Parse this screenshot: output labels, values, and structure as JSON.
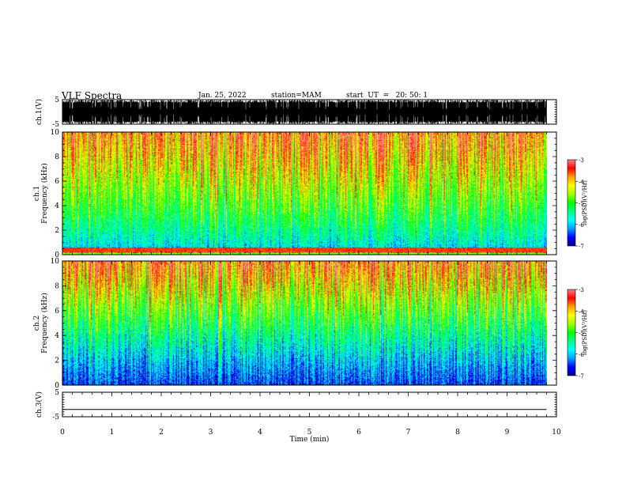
{
  "header": {
    "title": "VLF Spectra",
    "date": "Jan. 25, 2022",
    "station": "station=MAM",
    "start": "start  UT  =   20: 50: 1"
  },
  "colors": {
    "colormap": [
      "#00008c",
      "#0000ff",
      "#00a0ff",
      "#00ffff",
      "#00ff7f",
      "#00ff00",
      "#9fff00",
      "#ffff00",
      "#ffa000",
      "#ff0000",
      "#ff8080",
      "#ffffff"
    ]
  },
  "chart_data": [
    {
      "type": "line",
      "panel": "ch1-waveform",
      "ylabel": "ch.1(V)",
      "ylim": [
        -5,
        5
      ],
      "yticks": [
        "5",
        "-5"
      ],
      "xlim": [
        0,
        10
      ]
    },
    {
      "type": "heatmap",
      "panel": "ch1-spectrogram",
      "ylabel": "ch.1",
      "ylabel2": "Frequency (kHz)",
      "ylim": [
        0,
        10
      ],
      "yticks": [
        "10",
        "8",
        "6",
        "4",
        "2",
        "0"
      ],
      "xlim": [
        0,
        10
      ],
      "data_end_min": 9.8,
      "colorbar": {
        "label": "log(PSD)(V²/Hz)",
        "range": [
          -7,
          -3
        ],
        "ticks": [
          "-3",
          "-4",
          "-5",
          "-6",
          "-7"
        ]
      }
    },
    {
      "type": "heatmap",
      "panel": "ch2-spectrogram",
      "ylabel": "ch.2",
      "ylabel2": "Frequency (kHz)",
      "ylim": [
        0,
        10
      ],
      "yticks": [
        "10",
        "8",
        "6",
        "4",
        "2",
        "0"
      ],
      "xlim": [
        0,
        10
      ],
      "data_end_min": 9.8,
      "colorbar": {
        "label": "log(PSD)(V²/Hz)",
        "range": [
          -7,
          -3
        ],
        "ticks": [
          "-3",
          "-4",
          "-5",
          "-6",
          "-7"
        ]
      }
    },
    {
      "type": "line",
      "panel": "ch3-waveform",
      "ylabel": "ch.3(V)",
      "ylim": [
        -5,
        5
      ],
      "yticks": [
        "5",
        "-5"
      ],
      "xlim": [
        0,
        10
      ],
      "x": [
        0,
        9.8
      ],
      "y": [
        -2,
        -2
      ],
      "xlabel": "Time (min)",
      "xticks": [
        "0",
        "1",
        "2",
        "3",
        "4",
        "5",
        "6",
        "7",
        "8",
        "9",
        "10"
      ]
    }
  ]
}
